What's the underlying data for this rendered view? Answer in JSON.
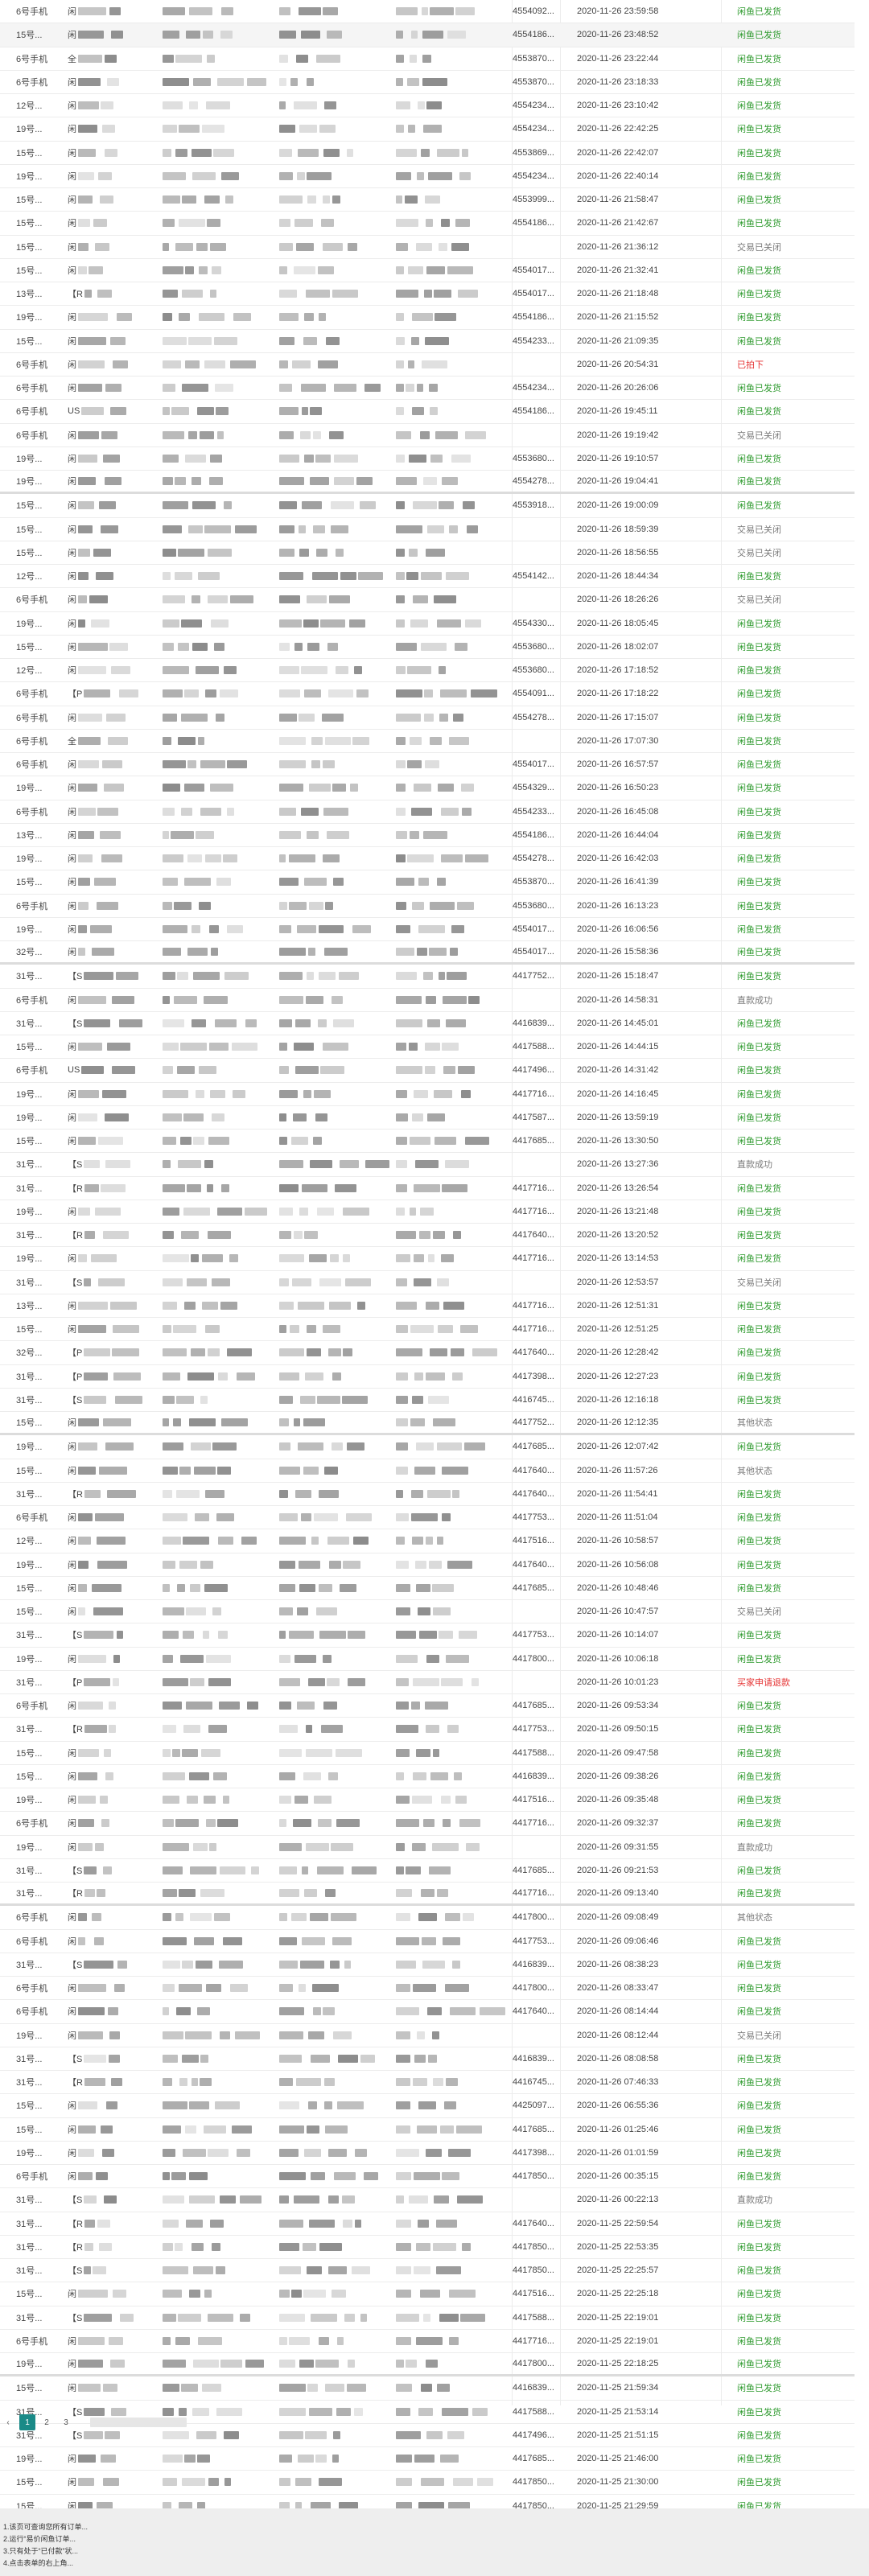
{
  "rows": [
    {
      "type": "6号手机",
      "s1": "闲",
      "id": "4554092...",
      "time": "2020-11-26 23:59:58",
      "status": "闲鱼已发货",
      "cls": "green"
    },
    {
      "type": "15号...",
      "s1": "闲",
      "id": "4554186...",
      "time": "2020-11-26 23:48:52",
      "status": "闲鱼已发货",
      "cls": "green"
    },
    {
      "type": "6号手机",
      "s1": "全",
      "id": "4553870...",
      "time": "2020-11-26 23:22:44",
      "status": "闲鱼已发货",
      "cls": "green"
    },
    {
      "type": "6号手机",
      "s1": "闲",
      "id": "4553870...",
      "time": "2020-11-26 23:18:33",
      "status": "闲鱼已发货",
      "cls": "green"
    },
    {
      "type": "12号...",
      "s1": "闲",
      "id": "4554234...",
      "time": "2020-11-26 23:10:42",
      "status": "闲鱼已发货",
      "cls": "green"
    },
    {
      "type": "19号...",
      "s1": "闲",
      "id": "4554234...",
      "time": "2020-11-26 22:42:25",
      "status": "闲鱼已发货",
      "cls": "green"
    },
    {
      "type": "15号...",
      "s1": "闲",
      "id": "4553869...",
      "time": "2020-11-26 22:42:07",
      "status": "闲鱼已发货",
      "cls": "green"
    },
    {
      "type": "19号...",
      "s1": "闲",
      "id": "4554234...",
      "time": "2020-11-26 22:40:14",
      "status": "闲鱼已发货",
      "cls": "green"
    },
    {
      "type": "15号...",
      "s1": "闲",
      "id": "4553999...",
      "time": "2020-11-26 21:58:47",
      "status": "闲鱼已发货",
      "cls": "green"
    },
    {
      "type": "15号...",
      "s1": "闲",
      "id": "4554186...",
      "time": "2020-11-26 21:42:67",
      "status": "闲鱼已发货",
      "cls": "green"
    },
    {
      "type": "15号...",
      "s1": "闲",
      "id": "",
      "time": "2020-11-26 21:36:12",
      "status": "交易已关闭",
      "cls": "gray"
    },
    {
      "type": "15号...",
      "s1": "闲",
      "id": "4554017...",
      "time": "2020-11-26 21:32:41",
      "status": "闲鱼已发货",
      "cls": "green"
    },
    {
      "type": "13号...",
      "s1": "【R",
      "id": "4554017...",
      "time": "2020-11-26 21:18:48",
      "status": "闲鱼已发货",
      "cls": "green"
    },
    {
      "type": "19号...",
      "s1": "闲",
      "id": "4554186...",
      "time": "2020-11-26 21:15:52",
      "status": "闲鱼已发货",
      "cls": "green"
    },
    {
      "type": "15号...",
      "s1": "闲",
      "id": "4554233...",
      "time": "2020-11-26 21:09:35",
      "status": "闲鱼已发货",
      "cls": "green"
    },
    {
      "type": "6号手机",
      "s1": "闲",
      "id": "",
      "time": "2020-11-26 20:54:31",
      "status": "已拍下",
      "cls": "red"
    },
    {
      "type": "6号手机",
      "s1": "闲",
      "id": "4554234...",
      "time": "2020-11-26 20:26:06",
      "status": "闲鱼已发货",
      "cls": "green"
    },
    {
      "type": "6号手机",
      "s1": "US",
      "id": "4554186...",
      "time": "2020-11-26 19:45:11",
      "status": "闲鱼已发货",
      "cls": "green"
    },
    {
      "type": "6号手机",
      "s1": "闲",
      "id": "",
      "time": "2020-11-26 19:19:42",
      "status": "交易已关闭",
      "cls": "gray"
    },
    {
      "type": "19号...",
      "s1": "闲",
      "id": "4553680...",
      "time": "2020-11-26 19:10:57",
      "status": "闲鱼已发货",
      "cls": "green"
    },
    {
      "type": "19号...",
      "s1": "闲",
      "id": "4554278...",
      "time": "2020-11-26 19:04:41",
      "status": "闲鱼已发货",
      "cls": "green"
    },
    {
      "type": "15号...",
      "s1": "闲",
      "id": "4553918...",
      "time": "2020-11-26 19:00:09",
      "status": "闲鱼已发货",
      "cls": "green"
    },
    {
      "type": "15号...",
      "s1": "闲",
      "id": "",
      "time": "2020-11-26 18:59:39",
      "status": "交易已关闭",
      "cls": "gray"
    },
    {
      "type": "15号...",
      "s1": "闲",
      "id": "",
      "time": "2020-11-26 18:56:55",
      "status": "交易已关闭",
      "cls": "gray"
    },
    {
      "type": "12号...",
      "s1": "闲",
      "id": "4554142...",
      "time": "2020-11-26 18:44:34",
      "status": "闲鱼已发货",
      "cls": "green"
    },
    {
      "type": "6号手机",
      "s1": "闲",
      "id": "",
      "time": "2020-11-26 18:26:26",
      "status": "交易已关闭",
      "cls": "gray"
    },
    {
      "type": "19号...",
      "s1": "闲",
      "id": "4554330...",
      "time": "2020-11-26 18:05:45",
      "status": "闲鱼已发货",
      "cls": "green"
    },
    {
      "type": "15号...",
      "s1": "闲",
      "id": "4553680...",
      "time": "2020-11-26 18:02:07",
      "status": "闲鱼已发货",
      "cls": "green"
    },
    {
      "type": "12号...",
      "s1": "闲",
      "id": "4553680...",
      "time": "2020-11-26 17:18:52",
      "status": "闲鱼已发货",
      "cls": "green"
    },
    {
      "type": "6号手机",
      "s1": "【P",
      "id": "4554091...",
      "time": "2020-11-26 17:18:22",
      "status": "闲鱼已发货",
      "cls": "green"
    },
    {
      "type": "6号手机",
      "s1": "闲",
      "id": "4554278...",
      "time": "2020-11-26 17:15:07",
      "status": "闲鱼已发货",
      "cls": "green"
    },
    {
      "type": "6号手机",
      "s1": "全",
      "id": "",
      "time": "2020-11-26 17:07:30",
      "status": "闲鱼已发货",
      "cls": "green"
    },
    {
      "type": "6号手机",
      "s1": "闲",
      "id": "4554017...",
      "time": "2020-11-26 16:57:57",
      "status": "闲鱼已发货",
      "cls": "green"
    },
    {
      "type": "19号...",
      "s1": "闲",
      "id": "4554329...",
      "time": "2020-11-26 16:50:23",
      "status": "闲鱼已发货",
      "cls": "green"
    },
    {
      "type": "6号手机",
      "s1": "闲",
      "id": "4554233...",
      "time": "2020-11-26 16:45:08",
      "status": "闲鱼已发货",
      "cls": "green"
    },
    {
      "type": "13号...",
      "s1": "闲",
      "id": "4554186...",
      "time": "2020-11-26 16:44:04",
      "status": "闲鱼已发货",
      "cls": "green"
    },
    {
      "type": "19号...",
      "s1": "闲",
      "id": "4554278...",
      "time": "2020-11-26 16:42:03",
      "status": "闲鱼已发货",
      "cls": "green"
    },
    {
      "type": "15号...",
      "s1": "闲",
      "id": "4553870...",
      "time": "2020-11-26 16:41:39",
      "status": "闲鱼已发货",
      "cls": "green"
    },
    {
      "type": "6号手机",
      "s1": "闲",
      "id": "4553680...",
      "time": "2020-11-26 16:13:23",
      "status": "闲鱼已发货",
      "cls": "green"
    },
    {
      "type": "19号...",
      "s1": "闲",
      "id": "4554017...",
      "time": "2020-11-26 16:06:56",
      "status": "闲鱼已发货",
      "cls": "green"
    },
    {
      "type": "32号...",
      "s1": "闲",
      "id": "4554017...",
      "time": "2020-11-26 15:58:36",
      "status": "闲鱼已发货",
      "cls": "green"
    },
    {
      "type": "31号...",
      "s1": "【S",
      "id": "4417752...",
      "time": "2020-11-26 15:18:47",
      "status": "闲鱼已发货",
      "cls": "green"
    },
    {
      "type": "6号手机",
      "s1": "闲",
      "id": "",
      "time": "2020-11-26 14:58:31",
      "status": "直款成功",
      "cls": "gray"
    },
    {
      "type": "31号...",
      "s1": "【S",
      "id": "4416839...",
      "time": "2020-11-26 14:45:01",
      "status": "闲鱼已发货",
      "cls": "green"
    },
    {
      "type": "15号...",
      "s1": "闲",
      "id": "4417588...",
      "time": "2020-11-26 14:44:15",
      "status": "闲鱼已发货",
      "cls": "green"
    },
    {
      "type": "6号手机",
      "s1": "US",
      "id": "4417496...",
      "time": "2020-11-26 14:31:42",
      "status": "闲鱼已发货",
      "cls": "green"
    },
    {
      "type": "19号...",
      "s1": "闲",
      "id": "4417716...",
      "time": "2020-11-26 14:16:45",
      "status": "闲鱼已发货",
      "cls": "green"
    },
    {
      "type": "19号...",
      "s1": "闲",
      "id": "4417587...",
      "time": "2020-11-26 13:59:19",
      "status": "闲鱼已发货",
      "cls": "green"
    },
    {
      "type": "15号...",
      "s1": "闲",
      "id": "4417685...",
      "time": "2020-11-26 13:30:50",
      "status": "闲鱼已发货",
      "cls": "green"
    },
    {
      "type": "31号...",
      "s1": "【S",
      "id": "",
      "time": "2020-11-26 13:27:36",
      "status": "直款成功",
      "cls": "gray"
    },
    {
      "type": "31号...",
      "s1": "【R",
      "id": "4417716...",
      "time": "2020-11-26 13:26:54",
      "status": "闲鱼已发货",
      "cls": "green"
    },
    {
      "type": "19号...",
      "s1": "闲",
      "id": "4417716...",
      "time": "2020-11-26 13:21:48",
      "status": "闲鱼已发货",
      "cls": "green"
    },
    {
      "type": "31号...",
      "s1": "【R",
      "id": "4417640...",
      "time": "2020-11-26 13:20:52",
      "status": "闲鱼已发货",
      "cls": "green"
    },
    {
      "type": "19号...",
      "s1": "闲",
      "id": "4417716...",
      "time": "2020-11-26 13:14:53",
      "status": "闲鱼已发货",
      "cls": "green"
    },
    {
      "type": "31号...",
      "s1": "【S",
      "id": "",
      "time": "2020-11-26 12:53:57",
      "status": "交易已关闭",
      "cls": "gray"
    },
    {
      "type": "13号...",
      "s1": "闲",
      "id": "4417716...",
      "time": "2020-11-26 12:51:31",
      "status": "闲鱼已发货",
      "cls": "green"
    },
    {
      "type": "15号...",
      "s1": "闲",
      "id": "4417716...",
      "time": "2020-11-26 12:51:25",
      "status": "闲鱼已发货",
      "cls": "green"
    },
    {
      "type": "32号...",
      "s1": "【P",
      "id": "4417640...",
      "time": "2020-11-26 12:28:42",
      "status": "闲鱼已发货",
      "cls": "green"
    },
    {
      "type": "31号...",
      "s1": "【P",
      "id": "4417398...",
      "time": "2020-11-26 12:27:23",
      "status": "闲鱼已发货",
      "cls": "green"
    },
    {
      "type": "31号...",
      "s1": "【S",
      "id": "4416745...",
      "time": "2020-11-26 12:16:18",
      "status": "闲鱼已发货",
      "cls": "green"
    },
    {
      "type": "15号...",
      "s1": "闲",
      "id": "4417752...",
      "time": "2020-11-26 12:12:35",
      "status": "其他状态",
      "cls": "gray"
    },
    {
      "type": "19号...",
      "s1": "闲",
      "id": "4417685...",
      "time": "2020-11-26 12:07:42",
      "status": "闲鱼已发货",
      "cls": "green"
    },
    {
      "type": "15号...",
      "s1": "闲",
      "id": "4417640...",
      "time": "2020-11-26 11:57:26",
      "status": "其他状态",
      "cls": "gray"
    },
    {
      "type": "31号...",
      "s1": "【R",
      "id": "4417640...",
      "time": "2020-11-26 11:54:41",
      "status": "闲鱼已发货",
      "cls": "green"
    },
    {
      "type": "6号手机",
      "s1": "闲",
      "id": "4417753...",
      "time": "2020-11-26 11:51:04",
      "status": "闲鱼已发货",
      "cls": "green"
    },
    {
      "type": "12号...",
      "s1": "闲",
      "id": "4417516...",
      "time": "2020-11-26 10:58:57",
      "status": "闲鱼已发货",
      "cls": "green"
    },
    {
      "type": "19号...",
      "s1": "闲",
      "id": "4417640...",
      "time": "2020-11-26 10:56:08",
      "status": "闲鱼已发货",
      "cls": "green"
    },
    {
      "type": "15号...",
      "s1": "闲",
      "id": "4417685...",
      "time": "2020-11-26 10:48:46",
      "status": "闲鱼已发货",
      "cls": "green"
    },
    {
      "type": "15号...",
      "s1": "闲",
      "id": "",
      "time": "2020-11-26 10:47:57",
      "status": "交易已关闭",
      "cls": "gray"
    },
    {
      "type": "31号...",
      "s1": "【S",
      "id": "4417753...",
      "time": "2020-11-26 10:14:07",
      "status": "闲鱼已发货",
      "cls": "green"
    },
    {
      "type": "19号...",
      "s1": "闲",
      "id": "4417800...",
      "time": "2020-11-26 10:06:18",
      "status": "闲鱼已发货",
      "cls": "green"
    },
    {
      "type": "31号...",
      "s1": "【P",
      "id": "",
      "time": "2020-11-26 10:01:23",
      "status": "买家申请退款",
      "cls": "red"
    },
    {
      "type": "6号手机",
      "s1": "闲",
      "id": "4417685...",
      "time": "2020-11-26 09:53:34",
      "status": "闲鱼已发货",
      "cls": "green"
    },
    {
      "type": "31号...",
      "s1": "【R",
      "id": "4417753...",
      "time": "2020-11-26 09:50:15",
      "status": "闲鱼已发货",
      "cls": "green"
    },
    {
      "type": "15号...",
      "s1": "闲",
      "id": "4417588...",
      "time": "2020-11-26 09:47:58",
      "status": "闲鱼已发货",
      "cls": "green"
    },
    {
      "type": "15号...",
      "s1": "闲",
      "id": "4416839...",
      "time": "2020-11-26 09:38:26",
      "status": "闲鱼已发货",
      "cls": "green"
    },
    {
      "type": "19号...",
      "s1": "闲",
      "id": "4417516...",
      "time": "2020-11-26 09:35:48",
      "status": "闲鱼已发货",
      "cls": "green"
    },
    {
      "type": "6号手机",
      "s1": "闲",
      "id": "4417716...",
      "time": "2020-11-26 09:32:37",
      "status": "闲鱼已发货",
      "cls": "green"
    },
    {
      "type": "19号...",
      "s1": "闲",
      "id": "",
      "time": "2020-11-26 09:31:55",
      "status": "直款成功",
      "cls": "gray"
    },
    {
      "type": "31号...",
      "s1": "【S",
      "id": "4417685...",
      "time": "2020-11-26 09:21:53",
      "status": "闲鱼已发货",
      "cls": "green"
    },
    {
      "type": "31号...",
      "s1": "【R",
      "id": "4417716...",
      "time": "2020-11-26 09:13:40",
      "status": "闲鱼已发货",
      "cls": "green"
    },
    {
      "type": "6号手机",
      "s1": "闲",
      "id": "4417800...",
      "time": "2020-11-26 09:08:49",
      "status": "其他状态",
      "cls": "gray"
    },
    {
      "type": "6号手机",
      "s1": "闲",
      "id": "4417753...",
      "time": "2020-11-26 09:06:46",
      "status": "闲鱼已发货",
      "cls": "green"
    },
    {
      "type": "31号...",
      "s1": "【S",
      "id": "4416839...",
      "time": "2020-11-26 08:38:23",
      "status": "闲鱼已发货",
      "cls": "green"
    },
    {
      "type": "6号手机",
      "s1": "闲",
      "id": "4417800...",
      "time": "2020-11-26 08:33:47",
      "status": "闲鱼已发货",
      "cls": "green"
    },
    {
      "type": "6号手机",
      "s1": "闲",
      "id": "4417640...",
      "time": "2020-11-26 08:14:44",
      "status": "闲鱼已发货",
      "cls": "green"
    },
    {
      "type": "19号...",
      "s1": "闲",
      "id": "",
      "time": "2020-11-26 08:12:44",
      "status": "交易已关闭",
      "cls": "gray"
    },
    {
      "type": "31号...",
      "s1": "【S",
      "id": "4416839...",
      "time": "2020-11-26 08:08:58",
      "status": "闲鱼已发货",
      "cls": "green"
    },
    {
      "type": "31号...",
      "s1": "【R",
      "id": "4416745...",
      "time": "2020-11-26 07:46:33",
      "status": "闲鱼已发货",
      "cls": "green"
    },
    {
      "type": "15号...",
      "s1": "闲",
      "id": "4425097...",
      "time": "2020-11-26 06:55:36",
      "status": "闲鱼已发货",
      "cls": "green"
    },
    {
      "type": "15号...",
      "s1": "闲",
      "id": "4417685...",
      "time": "2020-11-26 01:25:46",
      "status": "闲鱼已发货",
      "cls": "green"
    },
    {
      "type": "19号...",
      "s1": "闲",
      "id": "4417398...",
      "time": "2020-11-26 01:01:59",
      "status": "闲鱼已发货",
      "cls": "green"
    },
    {
      "type": "6号手机",
      "s1": "闲",
      "id": "4417850...",
      "time": "2020-11-26 00:35:15",
      "status": "闲鱼已发货",
      "cls": "green"
    },
    {
      "type": "31号...",
      "s1": "【S",
      "id": "",
      "time": "2020-11-26 00:22:13",
      "status": "直款成功",
      "cls": "gray"
    },
    {
      "type": "31号...",
      "s1": "【R",
      "id": "4417640...",
      "time": "2020-11-25 22:59:54",
      "status": "闲鱼已发货",
      "cls": "green"
    },
    {
      "type": "31号...",
      "s1": "【R",
      "id": "4417850...",
      "time": "2020-11-25 22:53:35",
      "status": "闲鱼已发货",
      "cls": "green"
    },
    {
      "type": "31号...",
      "s1": "【S",
      "id": "4417850...",
      "time": "2020-11-25 22:25:57",
      "status": "闲鱼已发货",
      "cls": "green"
    },
    {
      "type": "15号...",
      "s1": "闲",
      "id": "4417516...",
      "time": "2020-11-25 22:25:18",
      "status": "闲鱼已发货",
      "cls": "green"
    },
    {
      "type": "31号...",
      "s1": "【S",
      "id": "4417588...",
      "time": "2020-11-25 22:19:01",
      "status": "闲鱼已发货",
      "cls": "green"
    },
    {
      "type": "6号手机",
      "s1": "闲",
      "id": "4417716...",
      "time": "2020-11-25 22:19:01",
      "status": "闲鱼已发货",
      "cls": "green"
    },
    {
      "type": "19号...",
      "s1": "闲",
      "id": "4417800...",
      "time": "2020-11-25 22:18:25",
      "status": "闲鱼已发货",
      "cls": "green"
    },
    {
      "type": "15号...",
      "s1": "闲",
      "id": "4416839...",
      "time": "2020-11-25 21:59:34",
      "status": "闲鱼已发货",
      "cls": "green"
    },
    {
      "type": "31号...",
      "s1": "【S",
      "id": "4417588...",
      "time": "2020-11-25 21:53:14",
      "status": "闲鱼已发货",
      "cls": "green"
    },
    {
      "type": "31号...",
      "s1": "【S",
      "id": "4417496...",
      "time": "2020-11-25 21:51:15",
      "status": "闲鱼已发货",
      "cls": "green"
    },
    {
      "type": "19号...",
      "s1": "闲",
      "id": "4417685...",
      "time": "2020-11-25 21:46:00",
      "status": "闲鱼已发货",
      "cls": "green"
    },
    {
      "type": "15号...",
      "s1": "闲",
      "id": "4417850...",
      "time": "2020-11-25 21:30:00",
      "status": "闲鱼已发货",
      "cls": "green"
    },
    {
      "type": "15号...",
      "s1": "闲",
      "id": "4417850...",
      "time": "2020-11-25 21:29:59",
      "status": "闲鱼已发货",
      "cls": "green"
    }
  ],
  "status_colors": {
    "green": "#2e9a2e",
    "gray": "#7a7a7a",
    "red": "#e53232"
  },
  "pagination": {
    "prev_icon": "‹",
    "pages": [
      "1",
      "2",
      "3"
    ],
    "active": "1"
  },
  "notes": [
    "1.该页可查询您所有订单...",
    "2.运行“易价闲鱼订单...",
    "3.只有处于“已付款”状...",
    "4.点击表单的右上角..."
  ]
}
